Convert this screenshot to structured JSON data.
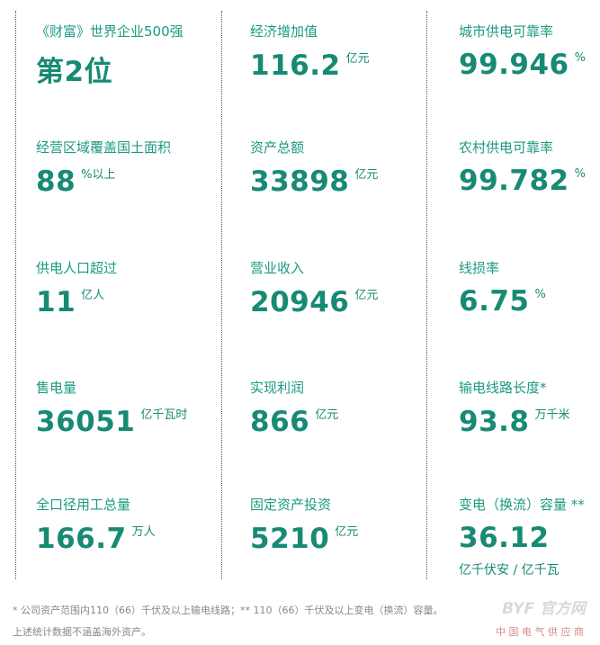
{
  "columns": [
    {
      "cells": [
        {
          "label": "《财富》世界企业500强",
          "value": "第2位"
        },
        {
          "label": "经营区域覆盖国土面积",
          "value": "88",
          "unit": "%以上"
        },
        {
          "label": "供电人口超过",
          "value": "11",
          "unit": "亿人"
        },
        {
          "label": "售电量",
          "value": "36051",
          "unit": "亿千瓦时"
        },
        {
          "label": "全口径用工总量",
          "value": "166.7",
          "unit": "万人"
        }
      ]
    },
    {
      "cells": [
        {
          "label": "经济增加值",
          "value": "116.2",
          "unit": "亿元"
        },
        {
          "label": "资产总额",
          "value": "33898",
          "unit": "亿元"
        },
        {
          "label": "营业收入",
          "value": "20946",
          "unit": "亿元"
        },
        {
          "label": "实现利润",
          "value": "866",
          "unit": "亿元"
        },
        {
          "label": "固定资产投资",
          "value": "5210",
          "unit": "亿元"
        }
      ]
    },
    {
      "cells": [
        {
          "label": "城市供电可靠率",
          "value": "99.946",
          "unit": "%"
        },
        {
          "label": "农村供电可靠率",
          "value": "99.782",
          "unit": "%"
        },
        {
          "label": "线损率",
          "value": "6.75",
          "unit": "%"
        },
        {
          "label": "输电线路长度*",
          "value": "93.8",
          "unit": "万千米"
        },
        {
          "label": "变电（换流）容量 **",
          "value": "36.12",
          "unit_below": "亿千伏安 / 亿千瓦"
        }
      ]
    }
  ],
  "footnotes": [
    "* 公司资产范围内110（66）千伏及以上输电线路；** 110（66）千伏及以上变电（换流）容量。",
    "上述统计数据不涵盖海外资产。"
  ],
  "watermark": {
    "brand": "BYF 官方网",
    "tagline": "中 国 电 气 供 应 商"
  }
}
